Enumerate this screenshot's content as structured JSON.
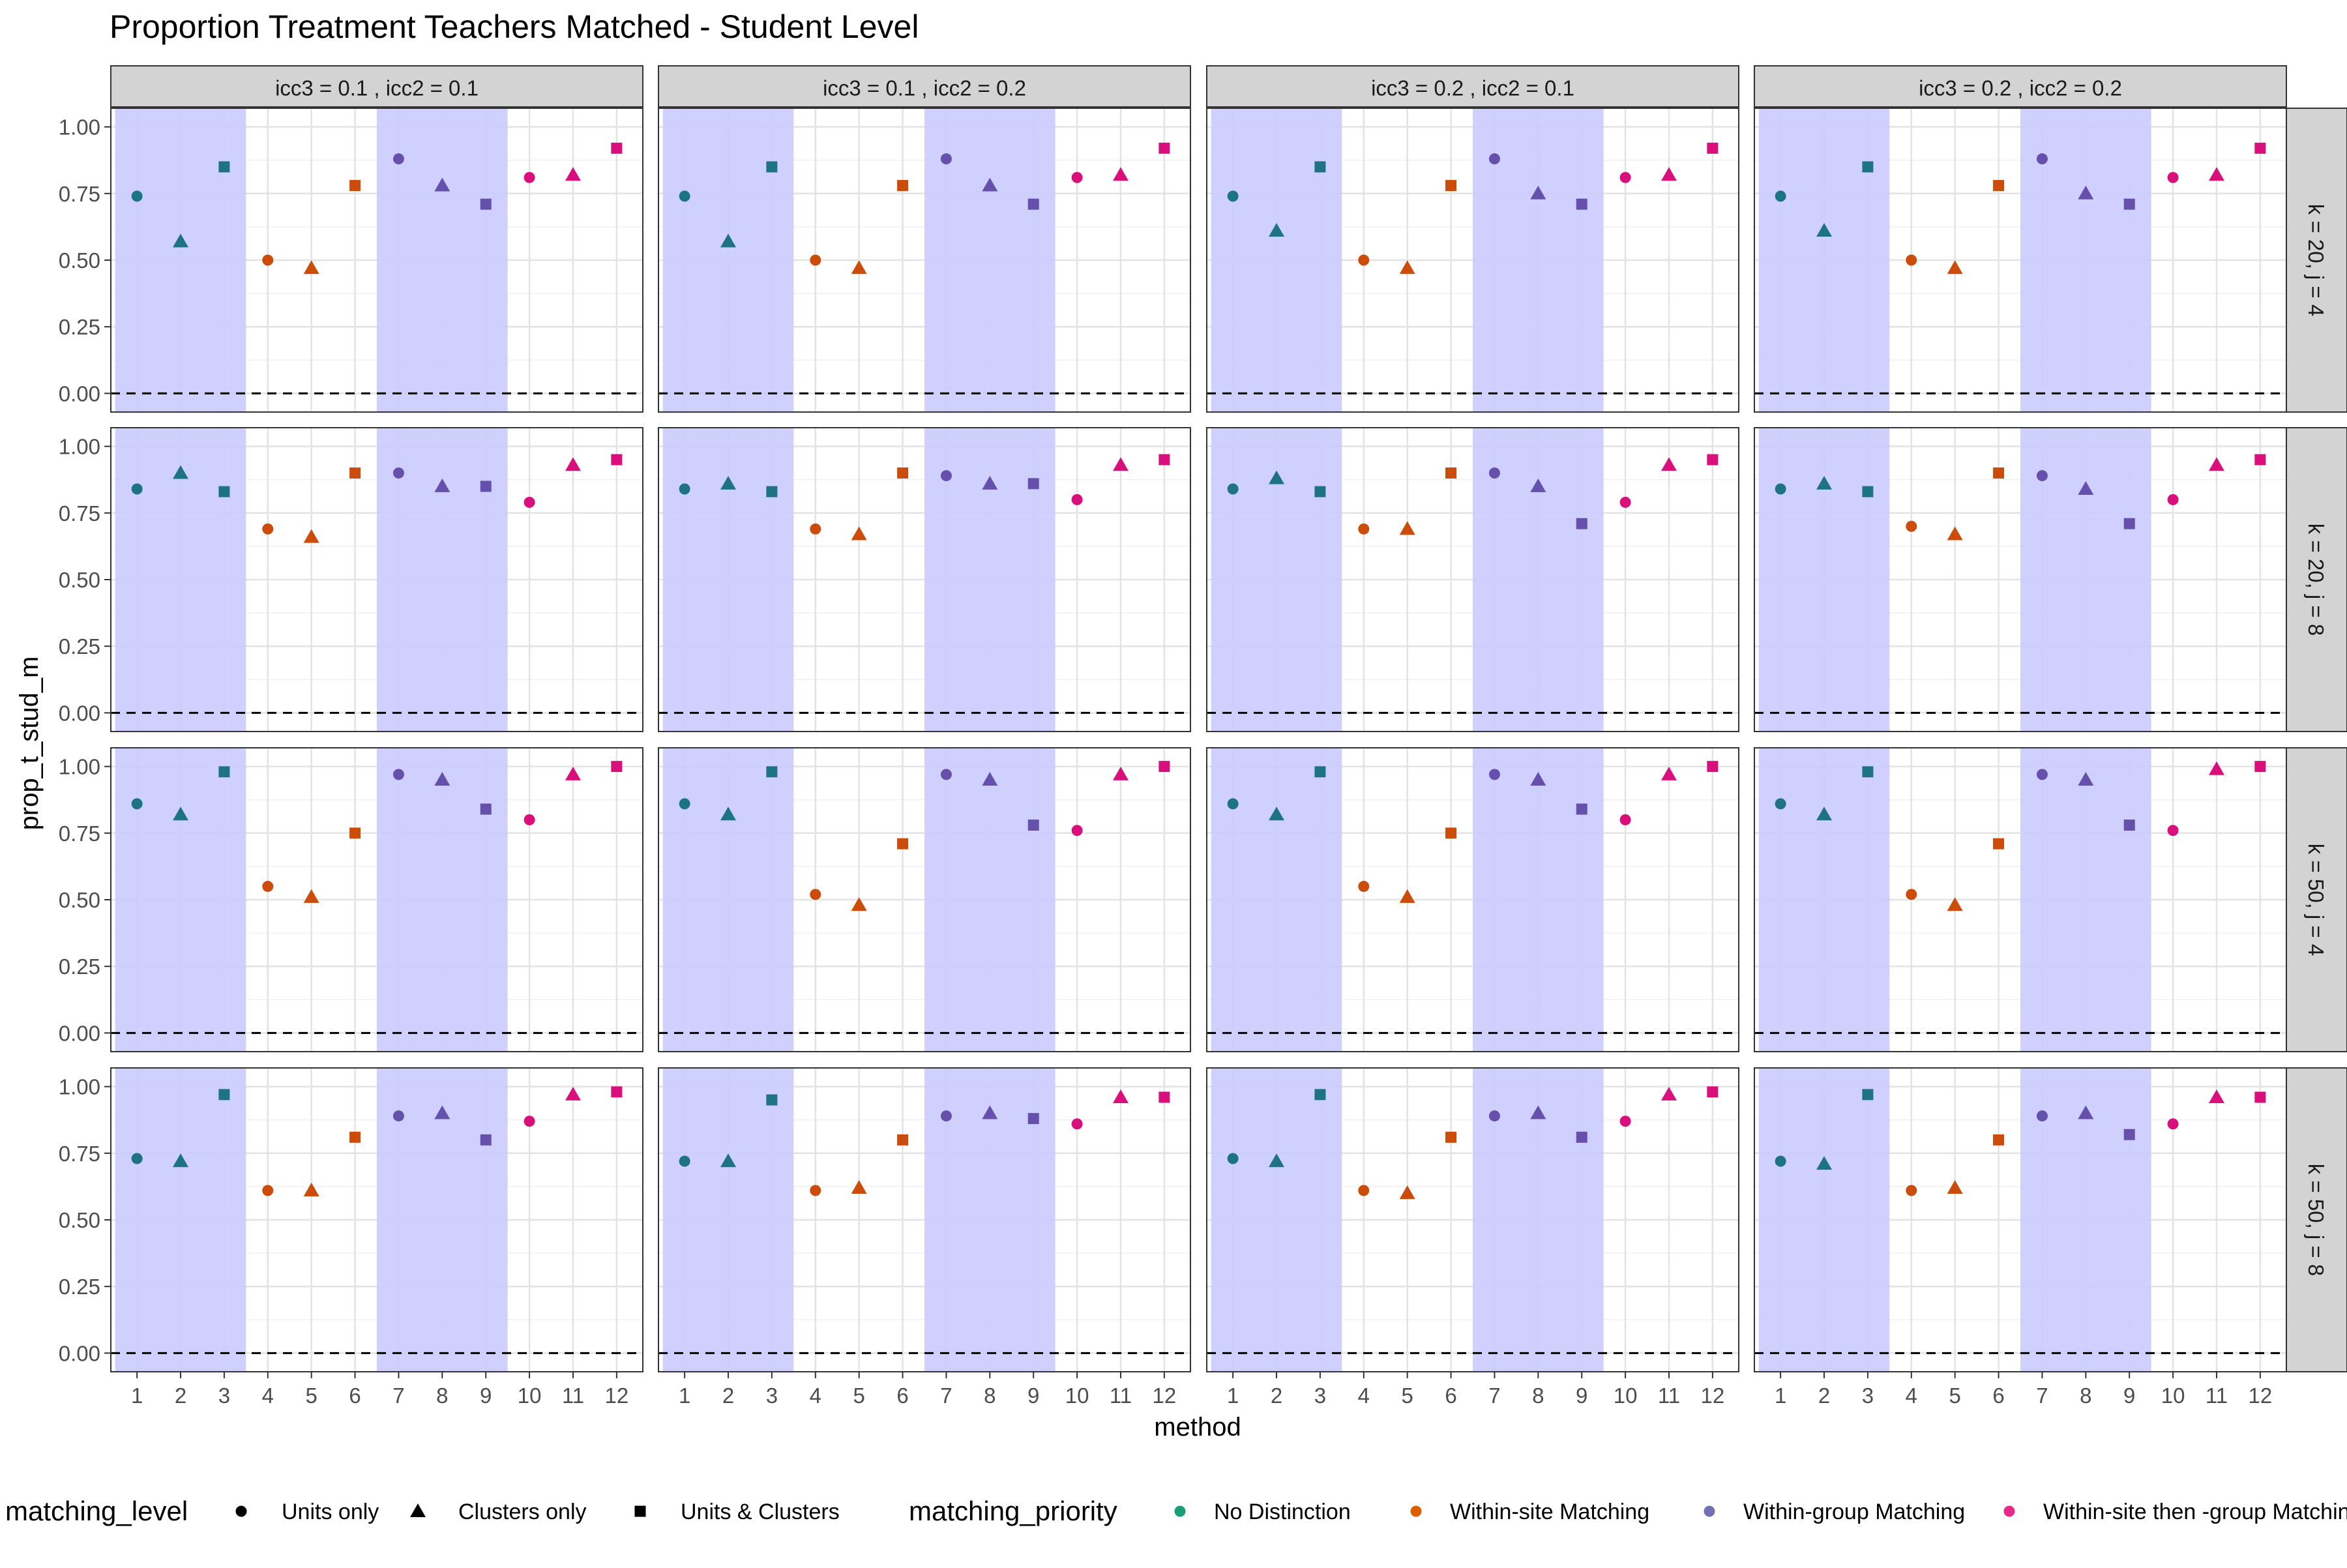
{
  "title": "Proportion Treatment Teachers Matched - Student Level",
  "chart_data": {
    "type": "scatter",
    "xlabel": "method",
    "ylabel": "prop_t_stud_m",
    "x_ticks": [
      1,
      2,
      3,
      4,
      5,
      6,
      7,
      8,
      9,
      10,
      11,
      12
    ],
    "ylim": [
      -0.07,
      1.07
    ],
    "y_ticks": [
      "0.00",
      "0.25",
      "0.50",
      "0.75",
      "1.00"
    ],
    "grid": true,
    "reference_line": {
      "y": 0,
      "style": "dashed"
    },
    "shaded_methods": [
      [
        1,
        3
      ],
      [
        7,
        9
      ]
    ],
    "col_facets": [
      "icc3 =  0.1 ,  icc2 =  0.1",
      "icc3 =  0.1 ,  icc2 =  0.2",
      "icc3 =  0.2 ,  icc2 =  0.1",
      "icc3 =  0.2 ,  icc2 =  0.2"
    ],
    "row_facets": [
      "k = 20, j = 4",
      "k = 20, j = 8",
      "k = 50, j = 4",
      "k = 50, j = 8"
    ],
    "point_levels": [
      "Units only",
      "Clusters only",
      "Units & Clusters",
      "Units only",
      "Clusters only",
      "Units & Clusters",
      "Units only",
      "Clusters only",
      "Units & Clusters",
      "Units only",
      "Clusters only",
      "Units & Clusters"
    ],
    "point_priorities": [
      "No Distinction",
      "No Distinction",
      "No Distinction",
      "Within-site Matching",
      "Within-site Matching",
      "Within-site Matching",
      "Within-group Matching",
      "Within-group Matching",
      "Within-group Matching",
      "Within-site then -group Matching",
      "Within-site then -group Matching",
      "Within-site then -group Matching"
    ],
    "values": [
      [
        [
          0.74,
          0.57,
          0.85,
          0.5,
          0.47,
          0.78,
          0.88,
          0.78,
          0.71,
          0.81,
          0.82,
          0.92
        ],
        [
          0.74,
          0.57,
          0.85,
          0.5,
          0.47,
          0.78,
          0.88,
          0.78,
          0.71,
          0.81,
          0.82,
          0.92
        ],
        [
          0.74,
          0.61,
          0.85,
          0.5,
          0.47,
          0.78,
          0.88,
          0.75,
          0.71,
          0.81,
          0.82,
          0.92
        ],
        [
          0.74,
          0.61,
          0.85,
          0.5,
          0.47,
          0.78,
          0.88,
          0.75,
          0.71,
          0.81,
          0.82,
          0.92
        ]
      ],
      [
        [
          0.84,
          0.9,
          0.83,
          0.69,
          0.66,
          0.9,
          0.9,
          0.85,
          0.85,
          0.79,
          0.93,
          0.95
        ],
        [
          0.84,
          0.86,
          0.83,
          0.69,
          0.67,
          0.9,
          0.89,
          0.86,
          0.86,
          0.8,
          0.93,
          0.95
        ],
        [
          0.84,
          0.88,
          0.83,
          0.69,
          0.69,
          0.9,
          0.9,
          0.85,
          0.71,
          0.79,
          0.93,
          0.95
        ],
        [
          0.84,
          0.86,
          0.83,
          0.7,
          0.67,
          0.9,
          0.89,
          0.84,
          0.71,
          0.8,
          0.93,
          0.95
        ]
      ],
      [
        [
          0.86,
          0.82,
          0.98,
          0.55,
          0.51,
          0.75,
          0.97,
          0.95,
          0.84,
          0.8,
          0.97,
          1.0
        ],
        [
          0.86,
          0.82,
          0.98,
          0.52,
          0.48,
          0.71,
          0.97,
          0.95,
          0.78,
          0.76,
          0.97,
          1.0
        ],
        [
          0.86,
          0.82,
          0.98,
          0.55,
          0.51,
          0.75,
          0.97,
          0.95,
          0.84,
          0.8,
          0.97,
          1.0
        ],
        [
          0.86,
          0.82,
          0.98,
          0.52,
          0.48,
          0.71,
          0.97,
          0.95,
          0.78,
          0.76,
          0.99,
          1.0
        ]
      ],
      [
        [
          0.73,
          0.72,
          0.97,
          0.61,
          0.61,
          0.81,
          0.89,
          0.9,
          0.8,
          0.87,
          0.97,
          0.98
        ],
        [
          0.72,
          0.72,
          0.95,
          0.61,
          0.62,
          0.8,
          0.89,
          0.9,
          0.88,
          0.86,
          0.96,
          0.96
        ],
        [
          0.73,
          0.72,
          0.97,
          0.61,
          0.6,
          0.81,
          0.89,
          0.9,
          0.81,
          0.87,
          0.97,
          0.98
        ],
        [
          0.72,
          0.71,
          0.97,
          0.61,
          0.62,
          0.8,
          0.89,
          0.9,
          0.82,
          0.86,
          0.96,
          0.96
        ]
      ]
    ],
    "legend": {
      "placement": "bottom",
      "shape_title": "matching_level",
      "shape_items": [
        {
          "label": "Units only",
          "shape": "circle"
        },
        {
          "label": "Clusters only",
          "shape": "triangle"
        },
        {
          "label": "Units & Clusters",
          "shape": "square"
        }
      ],
      "color_title": "matching_priority",
      "color_items": [
        {
          "label": "No Distinction",
          "color": "#1b9e77"
        },
        {
          "label": "Within-site Matching",
          "color": "#d95f02"
        },
        {
          "label": "Within-group Matching",
          "color": "#7570b3"
        },
        {
          "label": "Within-site then -group Matching",
          "color": "#e7298a"
        }
      ]
    }
  },
  "colors": {
    "No Distinction": "#1e7383",
    "Within-site Matching": "#cc4d0b",
    "Within-group Matching": "#6550ac",
    "Within-site then -group Matching": "#d90f7c",
    "shade": "#ccccff",
    "strip": "#d3d3d3"
  }
}
